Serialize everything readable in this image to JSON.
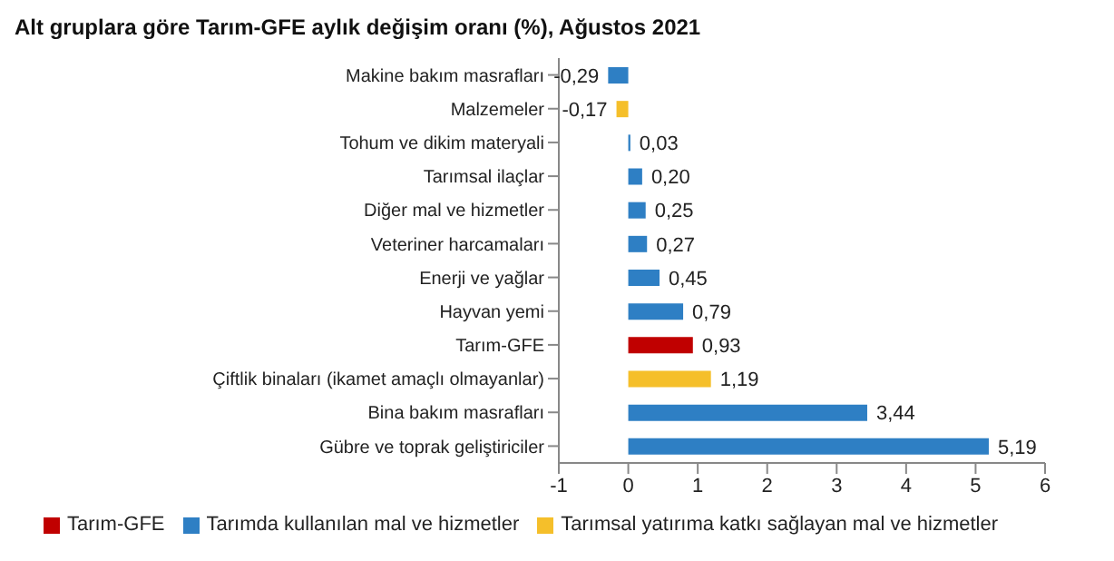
{
  "chart_data": {
    "type": "bar",
    "orientation": "horizontal",
    "stacked": true,
    "title": "Alt gruplara göre Tarım-GFE aylık değişim oranı (%), Ağustos 2021",
    "categories": [
      "Makine bakım masrafları",
      "Malzemeler",
      "Tohum ve dikim materyali",
      "Tarımsal ilaçlar",
      "Diğer mal ve hizmetler",
      "Veteriner harcamaları",
      "Enerji ve yağlar",
      "Hayvan yemi",
      "Tarım-GFE",
      "Çiftlik binaları (ikamet amaçlı olmayanlar)",
      "Bina bakım masrafları",
      "Gübre ve toprak geliştiriciler"
    ],
    "series": [
      {
        "name": "Tarım-GFE",
        "color": "#c00000",
        "values": [
          null,
          null,
          null,
          null,
          null,
          null,
          null,
          null,
          0.93,
          null,
          null,
          null
        ],
        "value_labels": [
          null,
          null,
          null,
          null,
          null,
          null,
          null,
          null,
          "0,93",
          null,
          null,
          null
        ]
      },
      {
        "name": "Tarımda kullanılan mal ve hizmetler",
        "color": "#2e7fc4",
        "values": [
          -0.29,
          null,
          0.03,
          0.2,
          0.25,
          0.27,
          0.45,
          0.79,
          null,
          null,
          3.44,
          5.19
        ],
        "value_labels": [
          "-0,29",
          null,
          "0,03",
          "0,20",
          "0,25",
          "0,27",
          "0,45",
          "0,79",
          null,
          null,
          "3,44",
          "5,19"
        ]
      },
      {
        "name": "Tarımsal yatırıma katkı sağlayan mal ve hizmetler",
        "color": "#f5bf2a",
        "values": [
          null,
          -0.17,
          null,
          null,
          null,
          null,
          null,
          null,
          null,
          1.19,
          null,
          null
        ],
        "value_labels": [
          null,
          "-0,17",
          null,
          null,
          null,
          null,
          null,
          null,
          null,
          "1,19",
          null,
          null
        ]
      }
    ],
    "xlim": [
      -1,
      6
    ],
    "xticks": [
      -1,
      0,
      1,
      2,
      3,
      4,
      5,
      6
    ],
    "grid": false,
    "legend": "bottom"
  }
}
